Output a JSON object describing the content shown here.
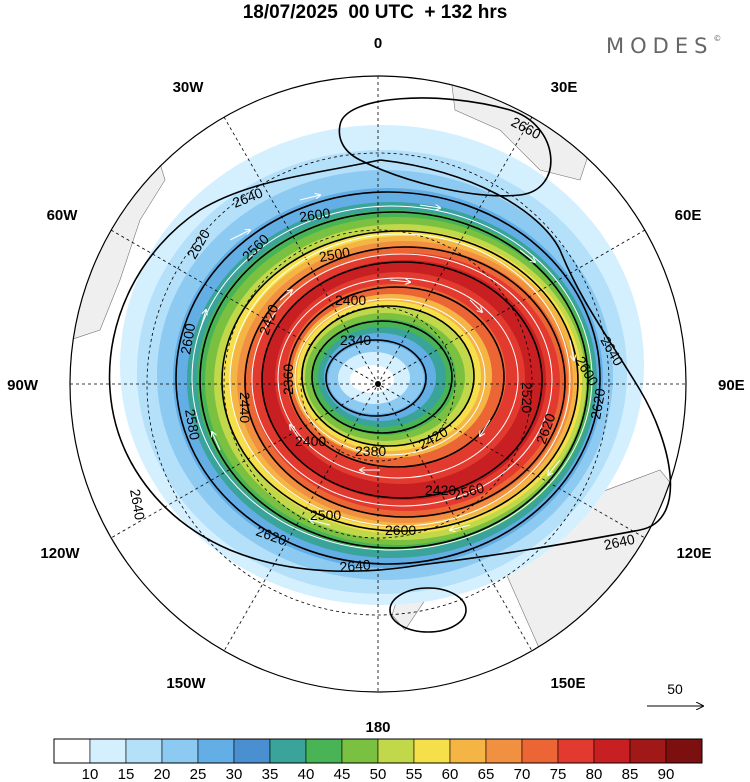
{
  "header": {
    "title": "18/07/2025  00 UTC  + 132 hrs",
    "brand": "MODES",
    "brand_mark": "©"
  },
  "map": {
    "projection": "polar-stereographic-south",
    "longitude_labels": {
      "top": "0",
      "bottom": "180",
      "left": "90W",
      "right": "90E",
      "w30": "30W",
      "e30": "30E",
      "w60": "60W",
      "e60": "60E",
      "w120": "120W",
      "e120": "120E",
      "w150": "150W",
      "e150": "150E"
    },
    "contour_labels": [
      "2660",
      "2640",
      "2640",
      "2640",
      "2640",
      "2640",
      "2620",
      "2620",
      "2620",
      "2600",
      "2600",
      "2600",
      "2600",
      "2580",
      "2560",
      "2500",
      "2420",
      "2400",
      "2400",
      "2420",
      "2380",
      "2360",
      "2340",
      "2420",
      "2440",
      "2520",
      "2620",
      "2560",
      "2500"
    ],
    "vector_reference": {
      "value": "50"
    }
  },
  "colorbar": {
    "labels": [
      "10",
      "15",
      "20",
      "25",
      "30",
      "35",
      "40",
      "45",
      "50",
      "55",
      "60",
      "65",
      "70",
      "75",
      "80",
      "85",
      "90"
    ],
    "colors": [
      "#ffffff",
      "#d4f0ff",
      "#b4e0fa",
      "#8ccaf2",
      "#64aee6",
      "#4a8fcf",
      "#3aa39a",
      "#48b455",
      "#7ac142",
      "#c0d84a",
      "#f5e04c",
      "#f5b545",
      "#f09040",
      "#ec6535",
      "#e23a2e",
      "#c81f22",
      "#a01818",
      "#7c1010"
    ]
  }
}
